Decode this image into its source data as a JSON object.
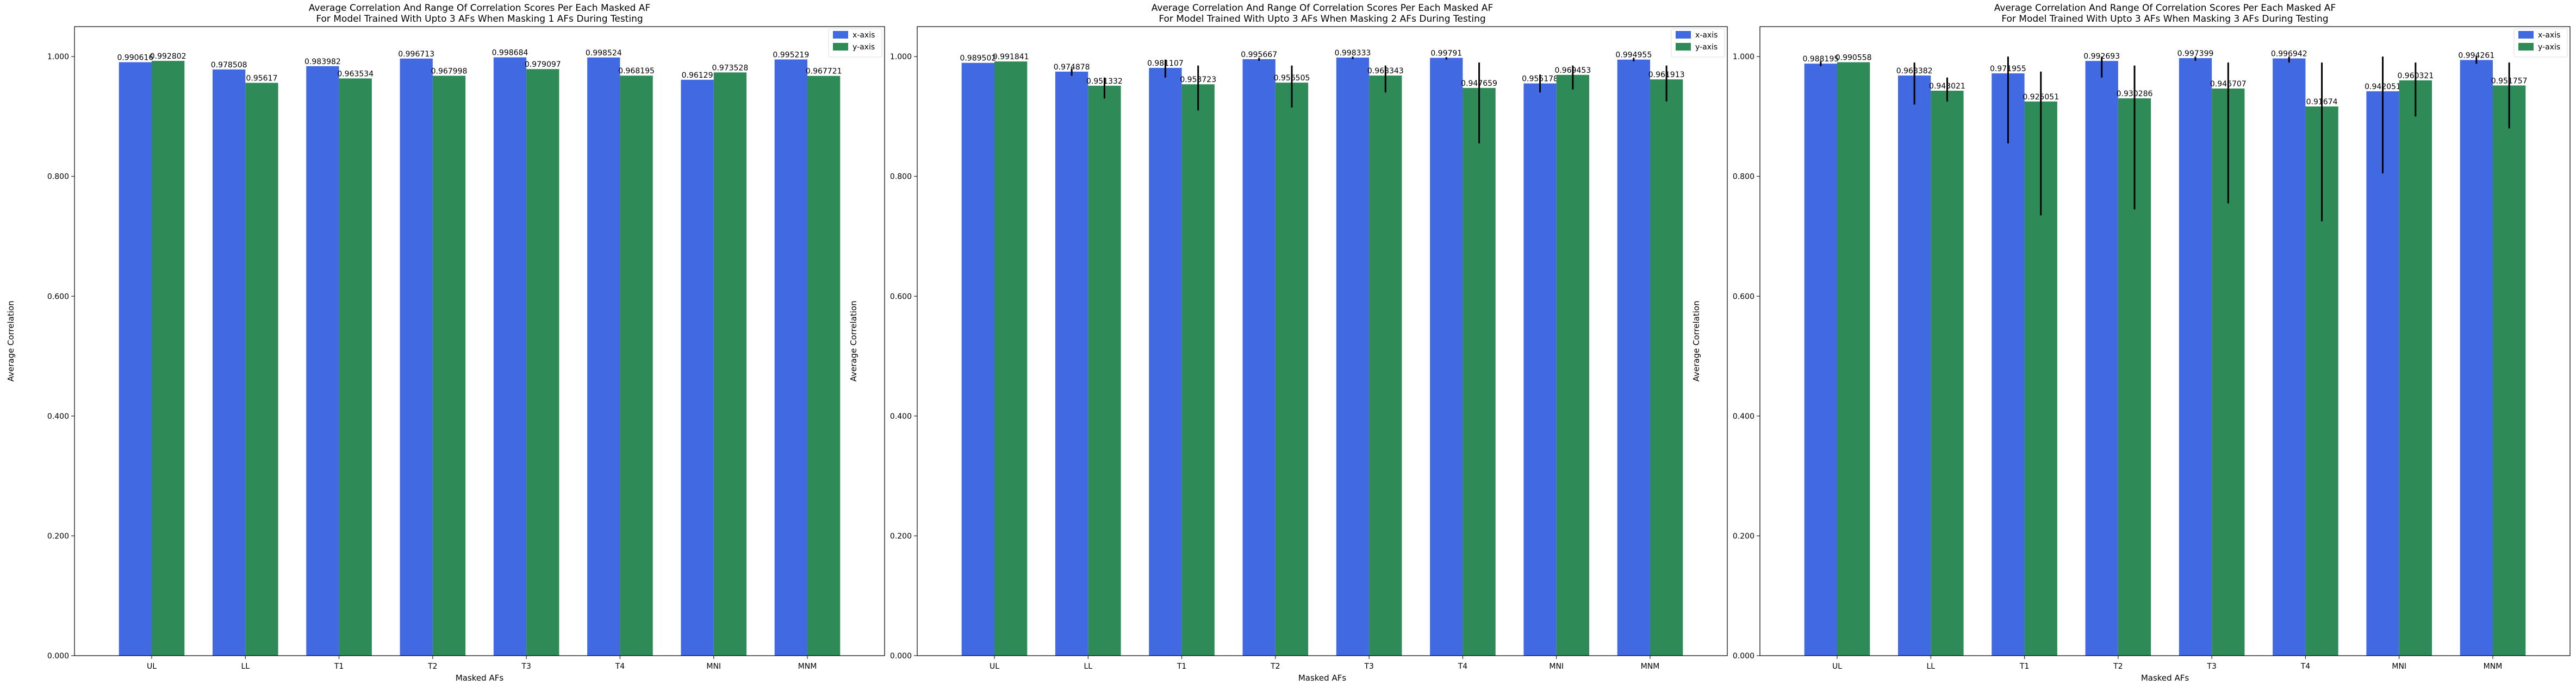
{
  "chart_data": [
    {
      "type": "bar",
      "title": [
        "Average Correlation And Range Of Correlation Scores Per Each Masked AF",
        "For Model Trained With Upto 3 AFs When Masking 1 AFs During Testing"
      ],
      "xlabel": "Masked AFs",
      "ylabel": "Average Correlation",
      "categories": [
        "UL",
        "LL",
        "T1",
        "T2",
        "T3",
        "T4",
        "MNI",
        "MNM"
      ],
      "ylim": [
        0,
        1.05
      ],
      "yticks": [
        "0.000",
        "0.200",
        "0.400",
        "0.600",
        "0.800",
        "1.000"
      ],
      "legend_position": "top-right",
      "series": [
        {
          "name": "x-axis",
          "color": "#4169e1",
          "values": [
            0.990616,
            0.978508,
            0.983982,
            0.996713,
            0.998684,
            0.998524,
            0.96129,
            0.995219
          ],
          "labels": [
            "0.990616",
            "0.978508",
            "0.983982",
            "0.996713",
            "0.998684",
            "0.998524",
            "0.96129",
            "0.995219"
          ],
          "err_low": [
            0.990616,
            0.978508,
            0.983982,
            0.996713,
            0.998684,
            0.998524,
            0.96129,
            0.995219
          ],
          "err_high": [
            0.990616,
            0.978508,
            0.983982,
            0.996713,
            0.998684,
            0.998524,
            0.96129,
            0.995219
          ]
        },
        {
          "name": "y-axis",
          "color": "#2e8b57",
          "values": [
            0.992802,
            0.95617,
            0.963534,
            0.967998,
            0.979097,
            0.968195,
            0.973528,
            0.967721
          ],
          "labels": [
            "0.992802",
            "0.95617",
            "0.963534",
            "0.967998",
            "0.979097",
            "0.968195",
            "0.973528",
            "0.967721"
          ],
          "err_low": [
            0.992802,
            0.95617,
            0.963534,
            0.967998,
            0.979097,
            0.968195,
            0.973528,
            0.967721
          ],
          "err_high": [
            0.992802,
            0.95617,
            0.963534,
            0.967998,
            0.979097,
            0.968195,
            0.973528,
            0.967721
          ]
        }
      ]
    },
    {
      "type": "bar",
      "title": [
        "Average Correlation And Range Of Correlation Scores Per Each Masked AF",
        "For Model Trained With Upto 3 AFs When Masking 2 AFs During Testing"
      ],
      "xlabel": "Masked AFs",
      "ylabel": "Average Correlation",
      "categories": [
        "UL",
        "LL",
        "T1",
        "T2",
        "T3",
        "T4",
        "MNI",
        "MNM"
      ],
      "ylim": [
        0,
        1.05
      ],
      "yticks": [
        "0.000",
        "0.200",
        "0.400",
        "0.600",
        "0.800",
        "1.000"
      ],
      "legend_position": "top-right",
      "series": [
        {
          "name": "x-axis",
          "color": "#4169e1",
          "values": [
            0.989502,
            0.974878,
            0.981107,
            0.995667,
            0.998333,
            0.99791,
            0.955178,
            0.994955
          ],
          "labels": [
            "0.989502",
            "0.974878",
            "0.981107",
            "0.995667",
            "0.998333",
            "0.99791",
            "0.955178",
            "0.994955"
          ],
          "err_low": [
            0.989502,
            0.968,
            0.965,
            0.993,
            0.996,
            0.995,
            0.94,
            0.992
          ],
          "err_high": [
            0.989502,
            0.98,
            0.995,
            0.998,
            1.0,
            0.999,
            0.97,
            0.998
          ]
        },
        {
          "name": "y-axis",
          "color": "#2e8b57",
          "values": [
            0.991841,
            0.951332,
            0.953723,
            0.956505,
            0.968343,
            0.947659,
            0.969453,
            0.961913
          ],
          "labels": [
            "0.991841",
            "0.951332",
            "0.953723",
            "0.956505",
            "0.968343",
            "0.947659",
            "0.969453",
            "0.961913"
          ],
          "err_low": [
            0.991841,
            0.93,
            0.91,
            0.915,
            0.94,
            0.855,
            0.945,
            0.925
          ],
          "err_high": [
            0.991841,
            0.965,
            0.985,
            0.985,
            0.985,
            0.99,
            0.985,
            0.985
          ]
        }
      ]
    },
    {
      "type": "bar",
      "title": [
        "Average Correlation And Range Of Correlation Scores Per Each Masked AF",
        "For Model Trained With Upto 3 AFs When Masking 3 AFs During Testing"
      ],
      "xlabel": "Masked AFs",
      "ylabel": "Average Correlation",
      "categories": [
        "UL",
        "LL",
        "T1",
        "T2",
        "T3",
        "T4",
        "MNI",
        "MNM"
      ],
      "ylim": [
        0,
        1.05
      ],
      "yticks": [
        "0.000",
        "0.200",
        "0.400",
        "0.600",
        "0.800",
        "1.000"
      ],
      "legend_position": "top-right",
      "series": [
        {
          "name": "x-axis",
          "color": "#4169e1",
          "values": [
            0.988195,
            0.968382,
            0.971955,
            0.992693,
            0.997399,
            0.996942,
            0.942051,
            0.994261
          ],
          "labels": [
            "0.988195",
            "0.968382",
            "0.971955",
            "0.992693",
            "0.997399",
            "0.996942",
            "0.942051",
            "0.994261"
          ],
          "err_low": [
            0.984,
            0.92,
            0.855,
            0.965,
            0.993,
            0.99,
            0.805,
            0.988
          ],
          "err_high": [
            0.992,
            0.99,
            1.0,
            1.0,
            1.0,
            1.0,
            1.0,
            1.0
          ]
        },
        {
          "name": "y-axis",
          "color": "#2e8b57",
          "values": [
            0.990558,
            0.943021,
            0.925051,
            0.930286,
            0.946707,
            0.91674,
            0.960321,
            0.951757
          ],
          "labels": [
            "0.990558",
            "0.943021",
            "0.925051",
            "0.930286",
            "0.946707",
            "0.91674",
            "0.960321",
            "0.951757"
          ],
          "err_low": [
            0.990558,
            0.925,
            0.735,
            0.745,
            0.755,
            0.725,
            0.9,
            0.88
          ],
          "err_high": [
            0.990558,
            0.965,
            0.975,
            0.985,
            0.99,
            0.99,
            0.99,
            0.99
          ]
        }
      ]
    }
  ]
}
